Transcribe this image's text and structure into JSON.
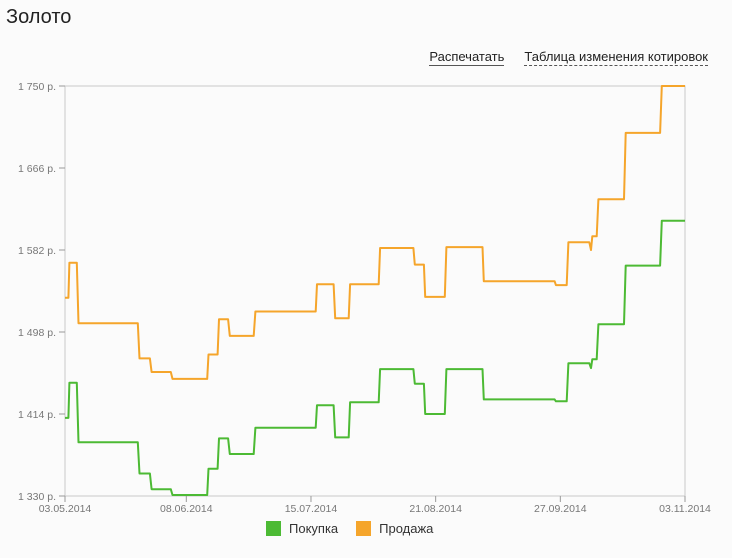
{
  "page": {
    "title": "Золото"
  },
  "toolbar": {
    "print_label": "Распечатать",
    "table_label": "Таблица изменения котировок"
  },
  "chart_data": {
    "type": "line",
    "ylim": [
      1330,
      1750
    ],
    "y_ticks": [
      "1 750 р.",
      "1 666 р.",
      "1 582 р.",
      "1 498 р.",
      "1 414 р.",
      "1 330 р."
    ],
    "y_tick_values": [
      1750,
      1666,
      1582,
      1498,
      1414,
      1330
    ],
    "x_ticks": [
      "03.05.2014",
      "08.06.2014",
      "15.07.2014",
      "21.08.2014",
      "27.09.2014",
      "03.11.2014"
    ],
    "x_tick_values": [
      0,
      36,
      73,
      110,
      147,
      184
    ],
    "grid": false,
    "legend_position": "bottom",
    "series": [
      {
        "name": "Покупка",
        "color": "#4cba34",
        "points": [
          [
            0,
            1410
          ],
          [
            1,
            1410
          ],
          [
            1.3,
            1446
          ],
          [
            3.5,
            1446
          ],
          [
            4,
            1385
          ],
          [
            21.6,
            1385
          ],
          [
            22.1,
            1353
          ],
          [
            25.2,
            1353
          ],
          [
            25.7,
            1337
          ],
          [
            31.4,
            1337
          ],
          [
            31.9,
            1331
          ],
          [
            42.2,
            1331
          ],
          [
            42.6,
            1358
          ],
          [
            45.3,
            1358
          ],
          [
            45.7,
            1389
          ],
          [
            48.4,
            1389
          ],
          [
            48.9,
            1373
          ],
          [
            56,
            1373
          ],
          [
            56.5,
            1400
          ],
          [
            74.4,
            1400
          ],
          [
            74.8,
            1423
          ],
          [
            79.7,
            1423
          ],
          [
            80.2,
            1390
          ],
          [
            84.2,
            1390
          ],
          [
            84.6,
            1426
          ],
          [
            93.1,
            1426
          ],
          [
            93.5,
            1460
          ],
          [
            103.4,
            1460
          ],
          [
            103.8,
            1445
          ],
          [
            106.5,
            1445
          ],
          [
            106.9,
            1414
          ],
          [
            112.7,
            1414
          ],
          [
            113.2,
            1460
          ],
          [
            123.9,
            1460
          ],
          [
            124.3,
            1429
          ],
          [
            145.3,
            1429
          ],
          [
            145.7,
            1427
          ],
          [
            148.9,
            1427
          ],
          [
            149.4,
            1466
          ],
          [
            155.6,
            1466
          ],
          [
            156.1,
            1461
          ],
          [
            156.5,
            1470
          ],
          [
            157.8,
            1470
          ],
          [
            158.3,
            1506
          ],
          [
            165.9,
            1506
          ],
          [
            166.4,
            1566
          ],
          [
            176.6,
            1566
          ],
          [
            177.1,
            1612
          ],
          [
            184,
            1612
          ]
        ]
      },
      {
        "name": "Продажа",
        "color": "#f5a52b",
        "points": [
          [
            0,
            1533
          ],
          [
            1,
            1533
          ],
          [
            1.3,
            1569
          ],
          [
            3.5,
            1569
          ],
          [
            4,
            1507
          ],
          [
            21.6,
            1507
          ],
          [
            22.1,
            1471
          ],
          [
            25.2,
            1471
          ],
          [
            25.7,
            1457
          ],
          [
            31.4,
            1457
          ],
          [
            31.9,
            1450
          ],
          [
            42.2,
            1450
          ],
          [
            42.6,
            1475
          ],
          [
            45.3,
            1475
          ],
          [
            45.7,
            1511
          ],
          [
            48.4,
            1511
          ],
          [
            48.9,
            1494
          ],
          [
            56,
            1494
          ],
          [
            56.5,
            1519
          ],
          [
            74.4,
            1519
          ],
          [
            74.8,
            1547
          ],
          [
            79.7,
            1547
          ],
          [
            80.2,
            1512
          ],
          [
            84.2,
            1512
          ],
          [
            84.6,
            1547
          ],
          [
            93.1,
            1547
          ],
          [
            93.5,
            1584
          ],
          [
            103.4,
            1584
          ],
          [
            103.8,
            1567
          ],
          [
            106.5,
            1567
          ],
          [
            106.9,
            1534
          ],
          [
            112.7,
            1534
          ],
          [
            113.2,
            1585
          ],
          [
            123.9,
            1585
          ],
          [
            124.3,
            1550
          ],
          [
            145.3,
            1550
          ],
          [
            145.7,
            1546
          ],
          [
            148.9,
            1546
          ],
          [
            149.4,
            1590
          ],
          [
            155.6,
            1590
          ],
          [
            156.1,
            1582
          ],
          [
            156.5,
            1596
          ],
          [
            157.8,
            1596
          ],
          [
            158.3,
            1634
          ],
          [
            165.9,
            1634
          ],
          [
            166.4,
            1702
          ],
          [
            176.6,
            1702
          ],
          [
            177.1,
            1750
          ],
          [
            184,
            1750
          ]
        ]
      }
    ]
  }
}
